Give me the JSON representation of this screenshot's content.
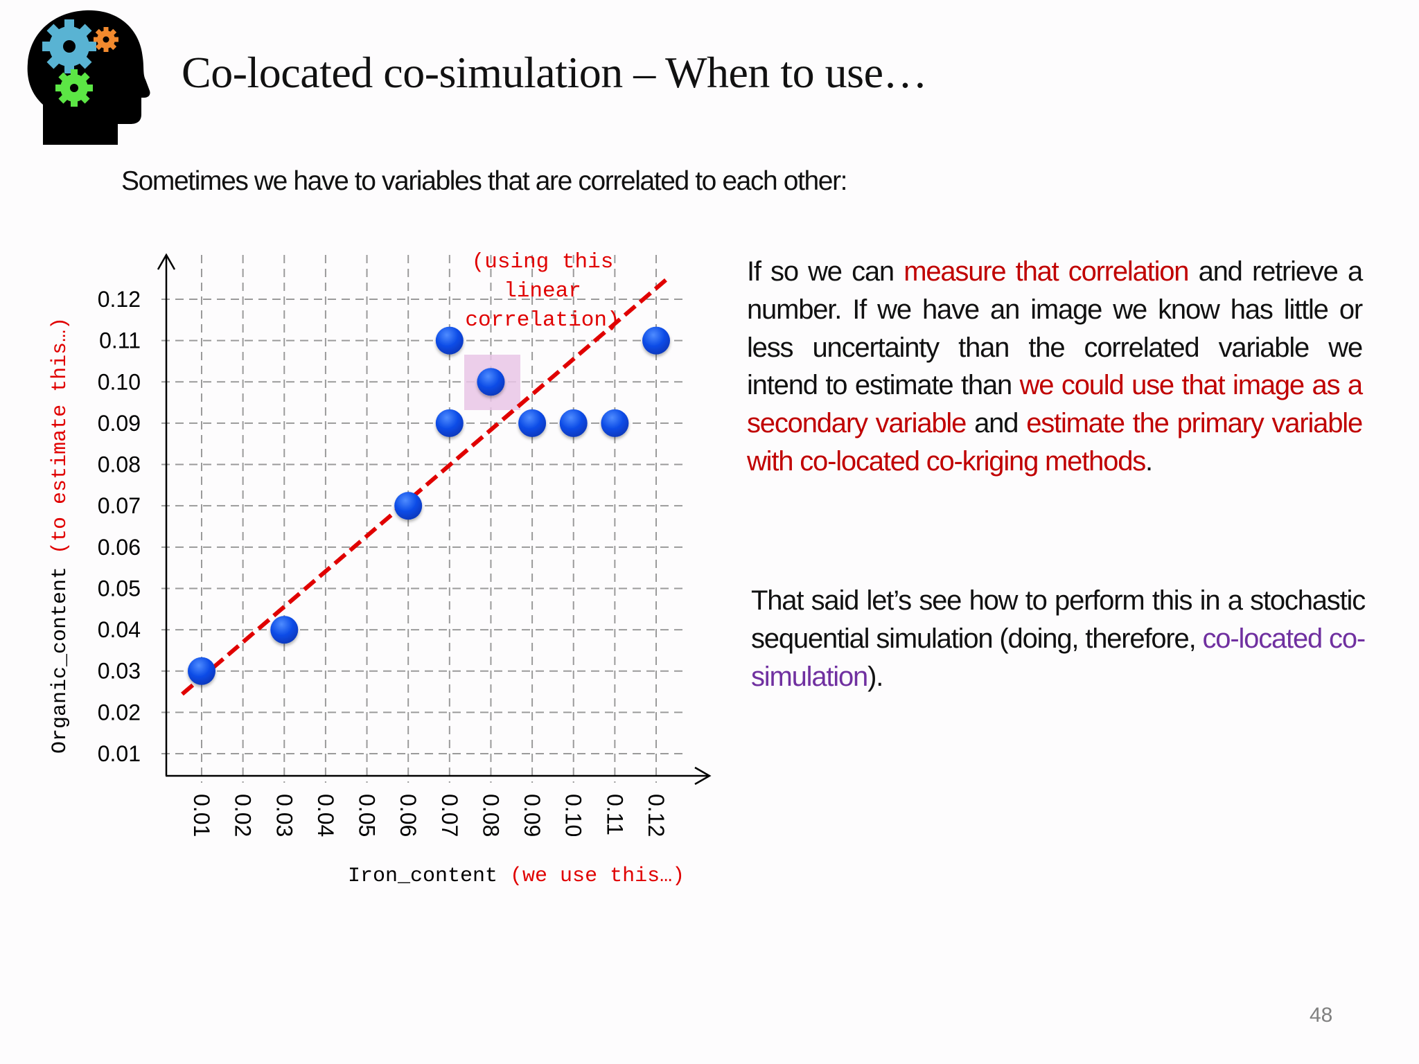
{
  "slide": {
    "title": "Co-located co-simulation – When to use…",
    "subtitle": "Sometimes we have to variables that are correlated to each other:",
    "page_number": "48",
    "logo_icon": "head-with-gears-icon"
  },
  "paragraph1": {
    "segments": [
      {
        "text": "If so we can ",
        "color": "#111111"
      },
      {
        "text": "measure that correlation",
        "color": "#c00000"
      },
      {
        "text": " and retrieve a number. If we have an image we know has little or less uncertainty than the correlated variable we intend to estimate than ",
        "color": "#111111"
      },
      {
        "text": "we could use that image as a secondary variable",
        "color": "#c00000"
      },
      {
        "text": " and ",
        "color": "#111111"
      },
      {
        "text": "estimate the primary variable with co-located co-kriging methods",
        "color": "#c00000"
      },
      {
        "text": ".",
        "color": "#111111"
      }
    ]
  },
  "paragraph2": {
    "segments": [
      {
        "text": "That said let’s see how to perform this in a stochastic sequential simulation (doing, therefore, ",
        "color": "#111111"
      },
      {
        "text": "co-located co-simulation",
        "color": "#7030a0"
      },
      {
        "text": ").",
        "color": "#111111"
      }
    ]
  },
  "chart_data": {
    "type": "scatter",
    "title": "",
    "xlabel": "Iron_content",
    "xlabel_note": "(we use this…)",
    "ylabel": "Organic_content",
    "ylabel_note": "(to estimate this…)",
    "x_ticks": [
      "0.01",
      "0.02",
      "0.03",
      "0.04",
      "0.05",
      "0.06",
      "0.07",
      "0.08",
      "0.09",
      "0.10",
      "0.11",
      "0.12"
    ],
    "y_ticks": [
      "0.01",
      "0.02",
      "0.03",
      "0.04",
      "0.05",
      "0.06",
      "0.07",
      "0.08",
      "0.09",
      "0.10",
      "0.11",
      "0.12"
    ],
    "xlim": [
      0.0,
      0.13
    ],
    "ylim": [
      0.0,
      0.13
    ],
    "grid": true,
    "points": [
      {
        "x": 0.01,
        "y": 0.03
      },
      {
        "x": 0.03,
        "y": 0.04
      },
      {
        "x": 0.06,
        "y": 0.07
      },
      {
        "x": 0.07,
        "y": 0.11
      },
      {
        "x": 0.07,
        "y": 0.09
      },
      {
        "x": 0.08,
        "y": 0.1,
        "highlighted": true
      },
      {
        "x": 0.09,
        "y": 0.09
      },
      {
        "x": 0.1,
        "y": 0.09
      },
      {
        "x": 0.11,
        "y": 0.09
      },
      {
        "x": 0.12,
        "y": 0.11
      }
    ],
    "trend_line": {
      "type": "linear",
      "style": "dashed",
      "color": "#e00000",
      "from": {
        "x": 0.005,
        "y": 0.025
      },
      "to": {
        "x": 0.1225,
        "y": 0.125
      }
    },
    "annotation": {
      "lines": [
        "(using this",
        "linear",
        "correlation)"
      ],
      "color": "#e00000"
    },
    "point_color": "#0b4be6",
    "highlight_color": "#e9c6e6"
  }
}
